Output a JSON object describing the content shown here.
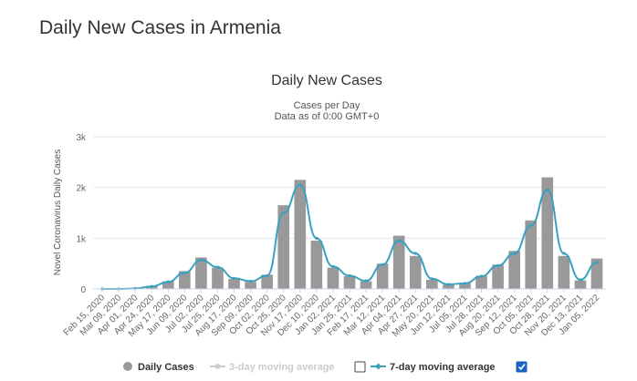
{
  "page": {
    "title": "Daily New Cases in Armenia"
  },
  "chart_data": {
    "type": "bar",
    "title": "Daily New Cases",
    "subtitle_lines": [
      "Cases per Day",
      "Data as of 0:00 GMT+0"
    ],
    "xlabel": "",
    "ylabel": "Novel Coronavirus Daily Cases",
    "ylim": [
      0,
      3000
    ],
    "yticks": [
      0,
      1000,
      2000,
      3000
    ],
    "ytick_labels": [
      "0",
      "1k",
      "2k",
      "3k"
    ],
    "grid": true,
    "categories": [
      "Feb 15, 2020",
      "Mar 09, 2020",
      "Apr 01, 2020",
      "Apr 24, 2020",
      "May 17, 2020",
      "Jun 09, 2020",
      "Jul 02, 2020",
      "Jul 25, 2020",
      "Aug 17, 2020",
      "Sep 09, 2020",
      "Oct 02, 2020",
      "Oct 25, 2020",
      "Nov 17, 2020",
      "Dec 10, 2020",
      "Jan 02, 2021",
      "Jan 25, 2021",
      "Feb 17, 2021",
      "Mar 12, 2021",
      "Apr 04, 2021",
      "Apr 27, 2021",
      "May 20, 2021",
      "Jun 12, 2021",
      "Jul 05, 2021",
      "Jul 28, 2021",
      "Aug 20, 2021",
      "Sep 12, 2021",
      "Oct 05, 2021",
      "Oct 28, 2021",
      "Nov 20, 2021",
      "Dec 13, 2021",
      "Jan 05, 2022"
    ],
    "series": [
      {
        "name": "Daily Cases",
        "color": "#999999",
        "values": [
          0,
          0,
          10,
          60,
          150,
          350,
          620,
          420,
          200,
          140,
          280,
          1650,
          2150,
          950,
          420,
          250,
          150,
          500,
          1050,
          650,
          180,
          80,
          120,
          260,
          480,
          750,
          1350,
          2200,
          650,
          170,
          600
        ]
      },
      {
        "name": "7-day moving average",
        "color": "#3aa0c0",
        "values": [
          0,
          0,
          10,
          50,
          140,
          320,
          570,
          430,
          210,
          150,
          260,
          1500,
          2050,
          1000,
          440,
          260,
          160,
          480,
          950,
          700,
          200,
          90,
          110,
          250,
          460,
          700,
          1250,
          1950,
          700,
          180,
          520
        ]
      }
    ],
    "legend": {
      "items": [
        {
          "label": "Daily Cases",
          "checkbox": false,
          "checked": false,
          "enabled": true
        },
        {
          "label": "3-day moving average",
          "checkbox": true,
          "checked": false,
          "enabled": false
        },
        {
          "label": "7-day moving average",
          "checkbox": true,
          "checked": true,
          "enabled": true
        }
      ],
      "placement": "bottom"
    }
  }
}
